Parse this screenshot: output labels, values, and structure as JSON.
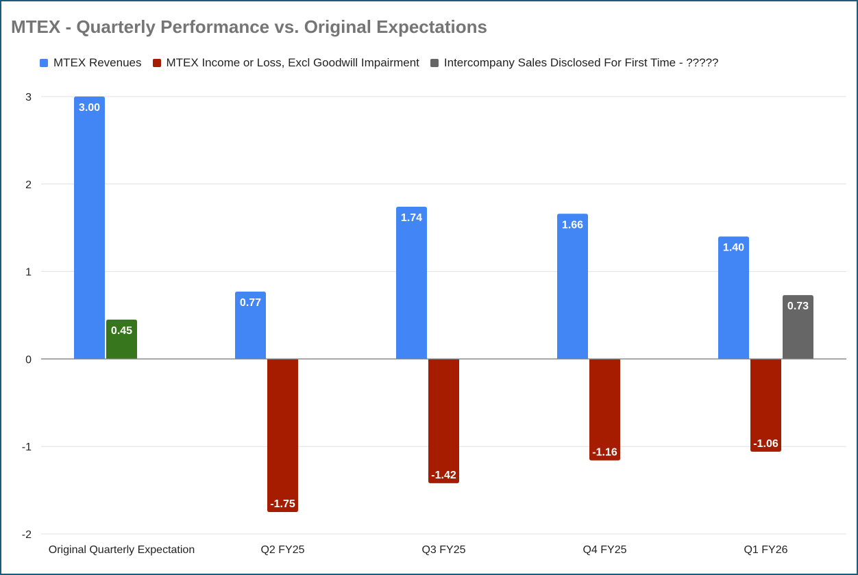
{
  "chart_data": {
    "type": "bar",
    "title": "MTEX - Quarterly Performance vs. Original Expectations",
    "xlabel": "",
    "ylabel": "",
    "categories": [
      "Original Quarterly Expectation",
      "Q2 FY25",
      "Q3 FY25",
      "Q4 FY25",
      "Q1 FY26"
    ],
    "series": [
      {
        "name": "MTEX Revenues",
        "color": "#4285f4",
        "values": [
          3.0,
          0.77,
          1.74,
          1.66,
          1.4
        ],
        "labels": [
          "3.00",
          "0.77",
          "1.74",
          "1.66",
          "1.40"
        ]
      },
      {
        "name": "MTEX Income or Loss, Excl Goodwill Impairment",
        "color": "#a61c00",
        "point_colors": [
          "#38761d",
          null,
          null,
          null,
          null
        ],
        "values": [
          0.45,
          -1.75,
          -1.42,
          -1.16,
          -1.06
        ],
        "labels": [
          "0.45",
          "-1.75",
          "-1.42",
          "-1.16",
          "-1.06"
        ]
      },
      {
        "name": "Intercompany Sales Disclosed For First Time - ?????",
        "color": "#666666",
        "values": [
          null,
          null,
          null,
          null,
          0.73
        ],
        "labels": [
          null,
          null,
          null,
          null,
          "0.73"
        ]
      }
    ],
    "ylim": [
      -2,
      3
    ],
    "yticks": [
      "-2",
      "-1",
      "0",
      "1",
      "2",
      "3"
    ],
    "grid": true,
    "legend": "top-left"
  }
}
